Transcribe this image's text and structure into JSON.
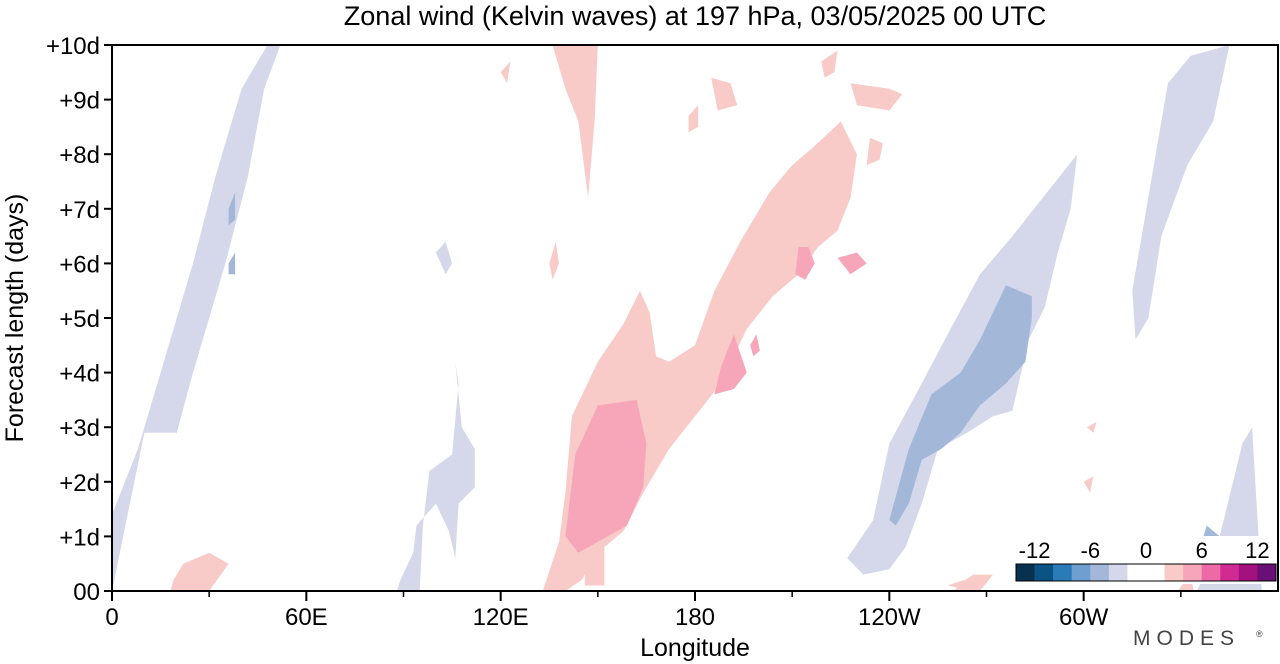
{
  "chart_data": {
    "type": "heatmap",
    "title": "Zonal wind (Kelvin waves) at 197 hPa,  03/05/2025  00 UTC",
    "xlabel": "Longitude",
    "ylabel": "Forecast length (days)",
    "x_ticks": [
      {
        "lon": 0,
        "label": "0"
      },
      {
        "lon": 60,
        "label": "60E"
      },
      {
        "lon": 120,
        "label": "120E"
      },
      {
        "lon": 180,
        "label": "180"
      },
      {
        "lon": 240,
        "label": "120W"
      },
      {
        "lon": 300,
        "label": "60W"
      }
    ],
    "x_minor_ticks": [
      30,
      90,
      150,
      210,
      270,
      330
    ],
    "xlim": [
      0,
      360
    ],
    "y_ticks": [
      {
        "day": 0,
        "label": "00"
      },
      {
        "day": 1,
        "label": "+1d"
      },
      {
        "day": 2,
        "label": "+2d"
      },
      {
        "day": 3,
        "label": "+3d"
      },
      {
        "day": 4,
        "label": "+4d"
      },
      {
        "day": 5,
        "label": "+5d"
      },
      {
        "day": 6,
        "label": "+6d"
      },
      {
        "day": 7,
        "label": "+7d"
      },
      {
        "day": 8,
        "label": "+8d"
      },
      {
        "day": 9,
        "label": "+9d"
      },
      {
        "day": 10,
        "label": "+10d"
      }
    ],
    "ylim": [
      0,
      10
    ],
    "colorbar": {
      "range": [
        -14,
        14
      ],
      "step": 2,
      "tick_values": [
        -12,
        -6,
        0,
        6,
        12
      ],
      "tick_labels": [
        "-12",
        "-6",
        "0",
        "6",
        "12"
      ],
      "colors": [
        "#08304f",
        "#0b5384",
        "#2a7bb8",
        "#6f9ed0",
        "#a3b8d9",
        "#d5d8ea",
        "#ffffff",
        "#ffffff",
        "#f9cbc8",
        "#f7a6ba",
        "#ee6aa7",
        "#d12a93",
        "#a3117e",
        "#6a0f75"
      ]
    },
    "fields": [
      {
        "level": "light-blue",
        "value": -3,
        "color": "#d5d8ea",
        "regions": [
          [
            [
              0,
              0
            ],
            [
              10,
              2.9
            ],
            [
              20,
              2.9
            ],
            [
              25,
              4.0
            ],
            [
              35,
              6.0
            ],
            [
              42,
              7.6
            ],
            [
              47,
              9.2
            ],
            [
              52,
              10
            ],
            [
              48,
              10
            ],
            [
              40,
              9.2
            ],
            [
              32,
              7.6
            ],
            [
              25,
              6.0
            ],
            [
              15,
              4.0
            ],
            [
              8,
              2.6
            ],
            [
              0,
              1.4
            ]
          ],
          [
            [
              88,
              0
            ],
            [
              95,
              0
            ],
            [
              96,
              1.2
            ],
            [
              98,
              2.2
            ],
            [
              105,
              2.5
            ],
            [
              107,
              3.8
            ],
            [
              106,
              4.2
            ],
            [
              108,
              3.0
            ],
            [
              112,
              2.6
            ],
            [
              112,
              1.9
            ],
            [
              107,
              1.6
            ],
            [
              106,
              0.6
            ],
            [
              104,
              1.1
            ],
            [
              100,
              1.6
            ],
            [
              94,
              1.2
            ],
            [
              93,
              0.7
            ],
            [
              89,
              0.2
            ]
          ],
          [
            [
              100,
              6.2
            ],
            [
              103,
              6.4
            ],
            [
              105,
              6.0
            ],
            [
              103,
              5.8
            ]
          ],
          [
            [
              227,
              0.6
            ],
            [
              235,
              1.3
            ],
            [
              240,
              2.7
            ],
            [
              250,
              3.8
            ],
            [
              258,
              4.7
            ],
            [
              268,
              5.8
            ],
            [
              278,
              6.5
            ],
            [
              290,
              7.4
            ],
            [
              298,
              8.0
            ],
            [
              296,
              7.0
            ],
            [
              292,
              6.2
            ],
            [
              288,
              5.2
            ],
            [
              283,
              4.6
            ],
            [
              278,
              3.3
            ],
            [
              272,
              3.2
            ],
            [
              264,
              2.9
            ],
            [
              255,
              2.6
            ],
            [
              250,
              1.6
            ],
            [
              245,
              0.8
            ],
            [
              240,
              0.4
            ],
            [
              232,
              0.3
            ]
          ],
          [
            [
              315,
              5.5
            ],
            [
              326,
              9.3
            ],
            [
              333,
              9.8
            ],
            [
              345,
              10
            ],
            [
              340,
              8.6
            ],
            [
              332,
              7.8
            ],
            [
              324,
              6.5
            ],
            [
              320,
              5.0
            ],
            [
              316,
              4.6
            ]
          ],
          [
            [
              335,
              0
            ],
            [
              342,
              1.0
            ],
            [
              349,
              2.7
            ],
            [
              352,
              3.0
            ],
            [
              355,
              0
            ]
          ],
          [
            [
              292,
              0.2
            ],
            [
              296,
              0.3
            ],
            [
              297,
              0.6
            ],
            [
              293,
              0.6
            ]
          ]
        ]
      },
      {
        "level": "blue",
        "value": -6,
        "color": "#a3b8d9",
        "regions": [
          [
            [
              36,
              7.0
            ],
            [
              38,
              7.3
            ],
            [
              38,
              6.8
            ],
            [
              36,
              6.7
            ]
          ],
          [
            [
              36,
              6.0
            ],
            [
              38,
              6.2
            ],
            [
              38,
              5.8
            ],
            [
              36,
              5.8
            ]
          ],
          [
            [
              240,
              1.3
            ],
            [
              246,
              2.6
            ],
            [
              253,
              3.6
            ],
            [
              262,
              4.0
            ],
            [
              268,
              4.6
            ],
            [
              276,
              5.6
            ],
            [
              284,
              5.4
            ],
            [
              284,
              5.0
            ],
            [
              282,
              4.2
            ],
            [
              276,
              3.8
            ],
            [
              268,
              3.4
            ],
            [
              262,
              2.9
            ],
            [
              256,
              2.6
            ],
            [
              250,
              2.4
            ],
            [
              246,
              1.6
            ],
            [
              242,
              1.2
            ]
          ],
          [
            [
              335,
              0.6
            ],
            [
              338,
              1.2
            ],
            [
              342,
              1.0
            ],
            [
              340,
              0.6
            ]
          ]
        ]
      },
      {
        "level": "pink",
        "value": 3,
        "color": "#f9cbc8",
        "regions": [
          [
            [
              133,
              0
            ],
            [
              138,
              0.9
            ],
            [
              140,
              1.8
            ],
            [
              142,
              3.2
            ],
            [
              150,
              4.2
            ],
            [
              158,
              4.9
            ],
            [
              163,
              5.5
            ],
            [
              166,
              5.1
            ],
            [
              168,
              4.3
            ],
            [
              172,
              4.2
            ],
            [
              180,
              4.5
            ],
            [
              186,
              5.5
            ],
            [
              194,
              6.4
            ],
            [
              203,
              7.3
            ],
            [
              210,
              7.8
            ],
            [
              216,
              8.1
            ],
            [
              225,
              8.6
            ],
            [
              230,
              8.0
            ],
            [
              228,
              7.2
            ],
            [
              224,
              6.6
            ],
            [
              218,
              6.3
            ],
            [
              212,
              5.8
            ],
            [
              204,
              5.4
            ],
            [
              196,
              4.8
            ],
            [
              188,
              3.8
            ],
            [
              180,
              3.2
            ],
            [
              172,
              2.6
            ],
            [
              164,
              1.8
            ],
            [
              158,
              1.1
            ],
            [
              150,
              0.7
            ],
            [
              145,
              0.2
            ],
            [
              140,
              0
            ]
          ],
          [
            [
              146,
              0.1
            ],
            [
              152,
              0.1
            ],
            [
              152,
              0.9
            ],
            [
              146,
              0.6
            ]
          ],
          [
            [
              136,
              10
            ],
            [
              150,
              10
            ],
            [
              149,
              8.6
            ],
            [
              147,
              7.2
            ],
            [
              144,
              8.6
            ],
            [
              140,
              9.2
            ]
          ],
          [
            [
              185,
              9.4
            ],
            [
              191,
              9.3
            ],
            [
              193,
              8.9
            ],
            [
              187,
              8.8
            ]
          ],
          [
            [
              234,
              8.3
            ],
            [
              238,
              8.2
            ],
            [
              237,
              7.9
            ],
            [
              233,
              7.8
            ]
          ],
          [
            [
              228,
              9.3
            ],
            [
              240,
              9.2
            ],
            [
              244,
              9.1
            ],
            [
              240,
              8.8
            ],
            [
              230,
              8.9
            ]
          ],
          [
            [
              219,
              9.7
            ],
            [
              224,
              9.9
            ],
            [
              223,
              9.5
            ],
            [
              220,
              9.4
            ]
          ],
          [
            [
              178,
              8.7
            ],
            [
              181,
              8.9
            ],
            [
              181,
              8.5
            ],
            [
              178,
              8.4
            ]
          ],
          [
            [
              18,
              0
            ],
            [
              30,
              0
            ],
            [
              36,
              0.5
            ],
            [
              30,
              0.7
            ],
            [
              22,
              0.5
            ],
            [
              19,
              0.2
            ]
          ],
          [
            [
              260,
              0
            ],
            [
              268,
              0
            ],
            [
              272,
              0.3
            ],
            [
              266,
              0.3
            ],
            [
              262,
              0.15
            ]
          ],
          [
            [
              258,
              0.1
            ],
            [
              263,
              0.2
            ],
            [
              262,
              0.05
            ]
          ],
          [
            [
              135,
              6.0
            ],
            [
              137,
              6.4
            ],
            [
              138,
              6.0
            ],
            [
              136,
              5.7
            ]
          ],
          [
            [
              120,
              9.5
            ],
            [
              123,
              9.7
            ],
            [
              122,
              9.3
            ]
          ],
          [
            [
              329,
              0
            ],
            [
              333,
              0.3
            ],
            [
              334,
              0
            ]
          ],
          [
            [
              300,
              2.0
            ],
            [
              303,
              2.1
            ],
            [
              302,
              1.8
            ]
          ],
          [
            [
              301,
              3.0
            ],
            [
              304,
              3.1
            ],
            [
              303,
              2.9
            ]
          ]
        ]
      },
      {
        "level": "mid-pink",
        "value": 6,
        "color": "#f7a6ba",
        "regions": [
          [
            [
              140,
              1.0
            ],
            [
              143,
              2.5
            ],
            [
              150,
              3.4
            ],
            [
              162,
              3.5
            ],
            [
              165,
              2.7
            ],
            [
              164,
              1.9
            ],
            [
              159,
              1.2
            ],
            [
              150,
              0.9
            ],
            [
              144,
              0.7
            ]
          ],
          [
            [
              186,
              3.6
            ],
            [
              188,
              4.1
            ],
            [
              192,
              4.7
            ],
            [
              196,
              4.0
            ],
            [
              192,
              3.7
            ]
          ],
          [
            [
              197,
              4.5
            ],
            [
              199,
              4.7
            ],
            [
              200,
              4.4
            ],
            [
              198,
              4.3
            ]
          ],
          [
            [
              212,
              6.3
            ],
            [
              215,
              6.3
            ],
            [
              217,
              6.0
            ],
            [
              214,
              5.7
            ],
            [
              211,
              5.8
            ]
          ],
          [
            [
              224,
              6.1
            ],
            [
              230,
              6.2
            ],
            [
              233,
              6.0
            ],
            [
              228,
              5.8
            ]
          ]
        ]
      }
    ]
  },
  "watermark": "MODES"
}
